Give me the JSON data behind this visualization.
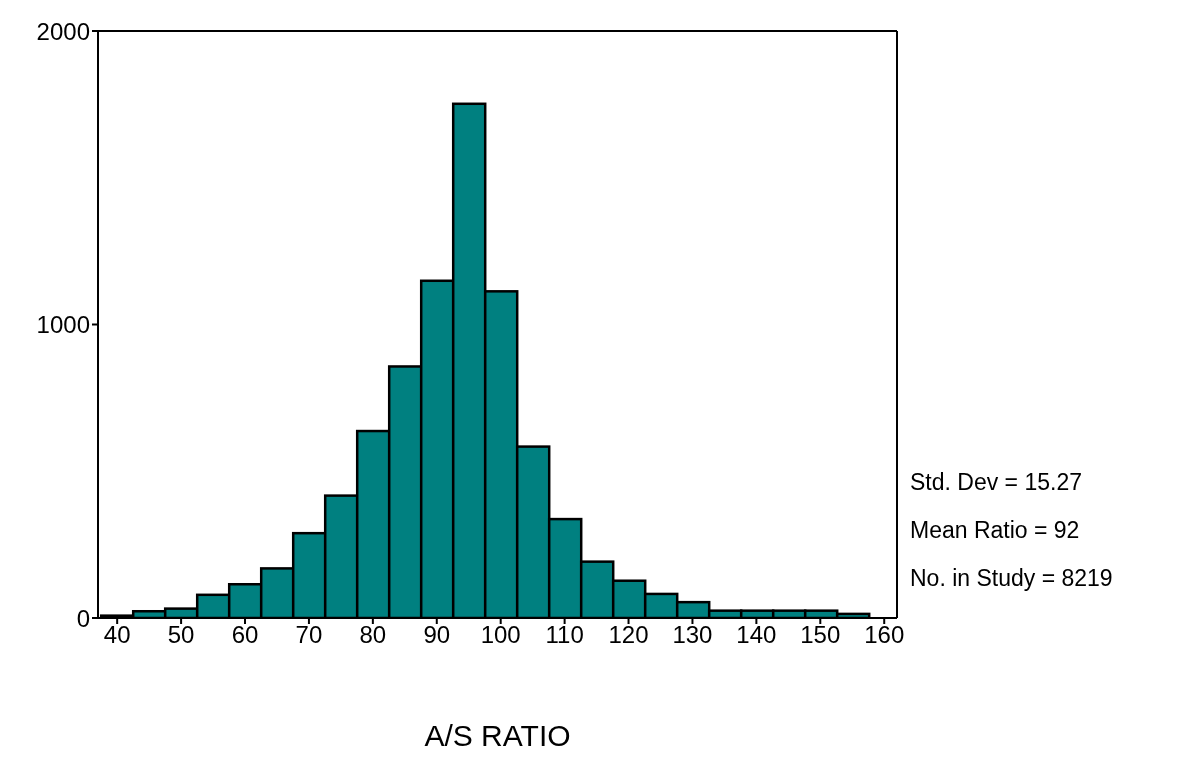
{
  "chart_data": {
    "type": "histogram",
    "xlabel": "A/S RATIO",
    "bins": [
      37.5,
      42.5,
      47.5,
      52.5,
      57.5,
      62.5,
      67.5,
      72.5,
      77.5,
      82.5,
      87.5,
      92.5,
      97.5,
      102.5,
      107.5,
      112.5,
      117.5,
      122.5,
      127.5,
      132.5,
      137.5,
      142.5,
      147.5,
      152.5,
      157.5
    ],
    "values": [
      8,
      23,
      32,
      79,
      115,
      169,
      289,
      417,
      637,
      857,
      1149,
      1752,
      1113,
      584,
      337,
      192,
      127,
      82,
      54,
      25,
      25,
      25,
      25,
      14
    ],
    "color": "#008080",
    "xlim": [
      37,
      162
    ],
    "xticks": [
      40,
      50,
      60,
      70,
      80,
      90,
      100,
      110,
      120,
      130,
      140,
      150,
      160
    ],
    "ylim": [
      0,
      2000
    ],
    "yticks": [
      0,
      1000,
      2000
    ],
    "annotations": [
      "Std. Dev = 15.27",
      "Mean Ratio = 92",
      "No. in Study = 8219"
    ]
  }
}
